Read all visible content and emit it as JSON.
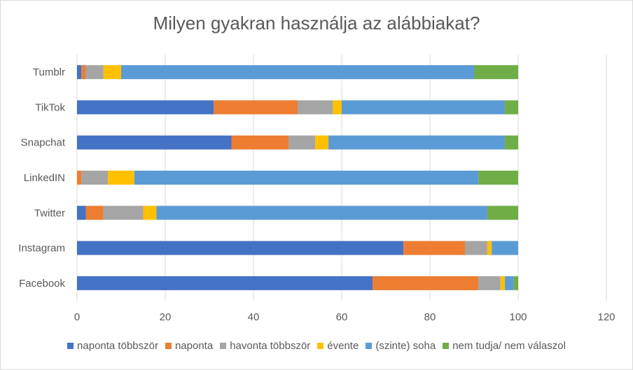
{
  "chart_data": {
    "type": "bar",
    "orientation": "horizontal",
    "stacked": true,
    "title": "Milyen gyakran használja az alábbiakat?",
    "categories": [
      "Facebook",
      "Instagram",
      "Twitter",
      "LinkedIN",
      "Snapchat",
      "TikTok",
      "Tumblr"
    ],
    "xlim": [
      0,
      120
    ],
    "x_ticks": [
      "0",
      "20",
      "40",
      "60",
      "80",
      "100",
      "120"
    ],
    "grid": "vertical",
    "legend_position": "bottom",
    "series": [
      {
        "name": "naponta többször",
        "color": "#4472c4",
        "values": [
          67,
          74,
          2,
          0,
          35,
          31,
          1
        ]
      },
      {
        "name": "naponta",
        "color": "#ed7d31",
        "values": [
          24,
          14,
          4,
          1,
          13,
          19,
          1
        ]
      },
      {
        "name": "havonta többször",
        "color": "#a5a5a5",
        "values": [
          5,
          5,
          9,
          6,
          6,
          8,
          4
        ]
      },
      {
        "name": "évente",
        "color": "#ffc000",
        "values": [
          1,
          1,
          3,
          6,
          3,
          2,
          4
        ]
      },
      {
        "name": "(szinte) soha",
        "color": "#5b9bd5",
        "values": [
          2,
          6,
          75,
          78,
          40,
          37,
          80
        ]
      },
      {
        "name": "nem tudja/ nem válaszol",
        "color": "#70ad47",
        "values": [
          1,
          0,
          7,
          9,
          3,
          3,
          10
        ]
      }
    ]
  }
}
